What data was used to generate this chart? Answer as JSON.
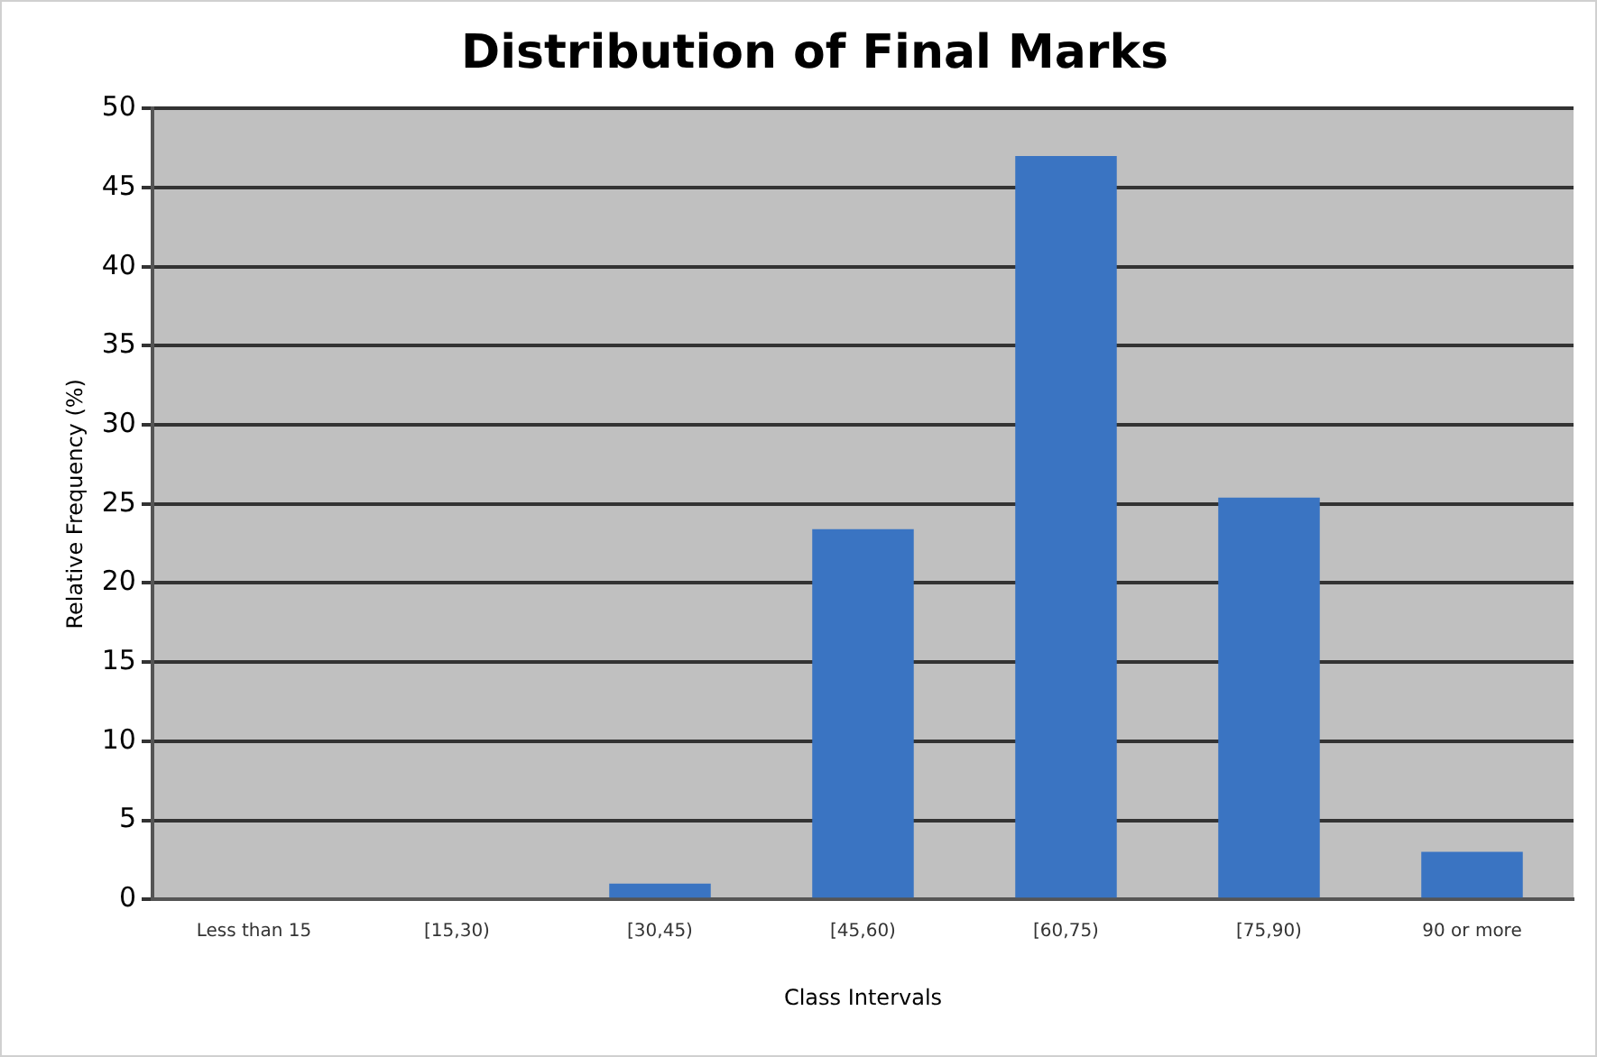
{
  "chart_data": {
    "type": "bar",
    "title": "Distribution of Final Marks",
    "xlabel": "Class Intervals",
    "ylabel": "Relative Frequency (%)",
    "categories": [
      "Less than 15",
      "[15,30)",
      "[30,45)",
      "[45,60)",
      "[60,75)",
      "[75,90)",
      "90 or more"
    ],
    "values": [
      0,
      0,
      1,
      23.4,
      47,
      25.4,
      3
    ],
    "color": "#3a74c2",
    "ylim": [
      0,
      50
    ],
    "yticks": [
      0,
      5,
      10,
      15,
      20,
      25,
      30,
      35,
      40,
      45,
      50
    ],
    "grid": "y",
    "legend": false
  }
}
